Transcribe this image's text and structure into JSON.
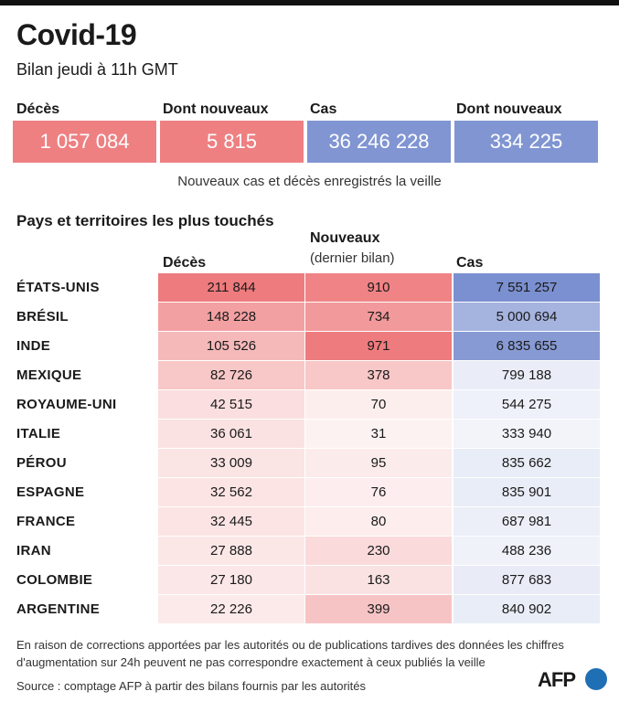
{
  "title": "Covid-19",
  "subtitle": "Bilan jeudi à 11h GMT",
  "summary": [
    {
      "label": "Décès",
      "value": "1 057 084",
      "color": "#ee8082"
    },
    {
      "label": "Dont nouveaux",
      "value": "5 815",
      "color": "#ee8082"
    },
    {
      "label": "Cas",
      "value": "36 246 228",
      "color": "#8095d2"
    },
    {
      "label": "Dont nouveaux",
      "value": "334 225",
      "color": "#8095d2"
    }
  ],
  "summary_note": "Nouveaux cas et décès enregistrés la veille",
  "section_title": "Pays et territoires les plus touchés",
  "headers": {
    "deaths": "Décès",
    "new": "Nouveaux",
    "new_sub": "(dernier bilan)",
    "cases": "Cas"
  },
  "chart_data": {
    "type": "table",
    "columns": [
      "Décès",
      "Nouveaux (dernier bilan)",
      "Cas"
    ],
    "rows": [
      {
        "country": "ÉTATS-UNIS",
        "deaths": "211 844",
        "new": "910",
        "cases": "7 551 257"
      },
      {
        "country": "BRÉSIL",
        "deaths": "148 228",
        "new": "734",
        "cases": "5 000 694"
      },
      {
        "country": "INDE",
        "deaths": "105 526",
        "new": "971",
        "cases": "6 835 655"
      },
      {
        "country": "MEXIQUE",
        "deaths": "82 726",
        "new": "378",
        "cases": "799 188"
      },
      {
        "country": "ROYAUME-UNI",
        "deaths": "42 515",
        "new": "70",
        "cases": "544 275"
      },
      {
        "country": "ITALIE",
        "deaths": "36 061",
        "new": "31",
        "cases": "333 940"
      },
      {
        "country": "PÉROU",
        "deaths": "33 009",
        "new": "95",
        "cases": "835 662"
      },
      {
        "country": "ESPAGNE",
        "deaths": "32 562",
        "new": "76",
        "cases": "835 901"
      },
      {
        "country": "FRANCE",
        "deaths": "32 445",
        "new": "80",
        "cases": "687 981"
      },
      {
        "country": "IRAN",
        "deaths": "27 888",
        "new": "230",
        "cases": "488 236"
      },
      {
        "country": "COLOMBIE",
        "deaths": "27 180",
        "new": "163",
        "cases": "877 683"
      },
      {
        "country": "ARGENTINE",
        "deaths": "22 226",
        "new": "399",
        "cases": "840 902"
      }
    ],
    "colors": {
      "deaths": "#ee7b7d",
      "new": "#ee7b7d",
      "cases": "#7b90d0"
    }
  },
  "footnote": "En raison de corrections apportées par les autorités ou de publications tardives des données  les chiffres d'augmentation sur 24h peuvent ne pas correspondre exactement à ceux publiés la veille",
  "source": "Source : comptage AFP à partir des bilans fournis par les autorités",
  "logo": "AFP"
}
